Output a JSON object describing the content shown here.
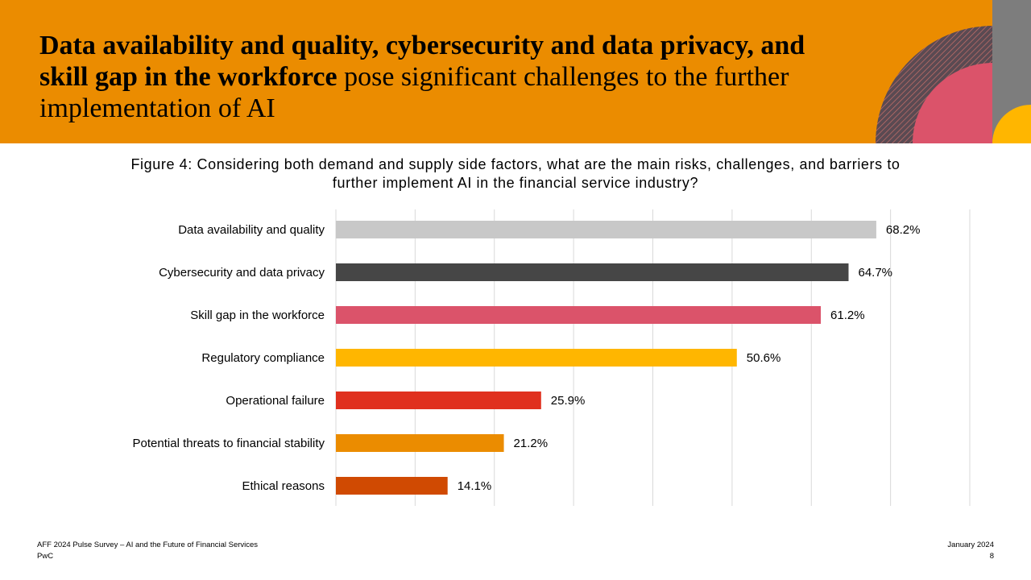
{
  "header": {
    "title_bold": "Data availability and quality, cybersecurity and data privacy, and skill gap in the workforce",
    "title_rest": " pose significant challenges to the further implementation of AI",
    "background_color": "#eb8c00"
  },
  "figure": {
    "title": "Figure 4:  Considering both demand and supply side factors, what are the main risks, challenges, and barriers to further implement AI in the financial service industry?"
  },
  "chart_data": {
    "type": "bar",
    "orientation": "horizontal",
    "categories": [
      "Data availability and quality",
      "Cybersecurity and data privacy",
      "Skill gap in the workforce",
      "Regulatory compliance",
      "Operational failure",
      "Potential threats to financial stability",
      "Ethical reasons"
    ],
    "values": [
      68.2,
      64.7,
      61.2,
      50.6,
      25.9,
      21.2,
      14.1
    ],
    "value_labels": [
      "68.2%",
      "64.7%",
      "61.2%",
      "50.6%",
      "25.9%",
      "21.2%",
      "14.1%"
    ],
    "colors": [
      "#c8c8c8",
      "#464646",
      "#db536a",
      "#ffb600",
      "#e0301e",
      "#eb8c00",
      "#d04a02"
    ],
    "xlim": [
      0,
      80
    ],
    "grid": true,
    "gridline_step": 10,
    "legend": "none"
  },
  "footer": {
    "left_line1": "AFF 2024 Pulse Survey – AI and the Future of Financial Services",
    "left_line2": "PwC",
    "right_line1": "January 2024",
    "right_line2": "8"
  }
}
